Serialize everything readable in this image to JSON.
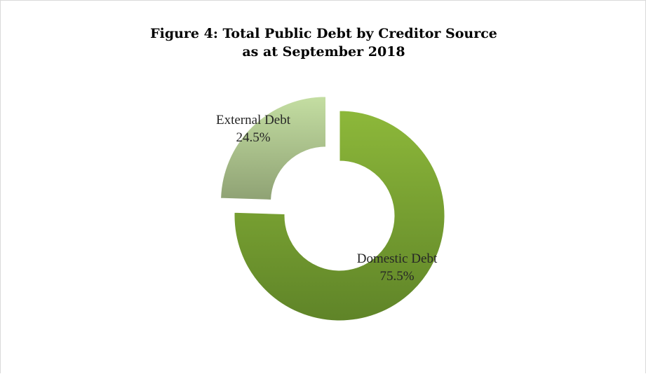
{
  "chart_data": {
    "type": "pie",
    "variant": "donut-exploded",
    "title": "Figure 4: Total Public Debt by Creditor Source",
    "subtitle": "as at September 2018",
    "slices": [
      {
        "name": "Domestic Debt",
        "value": 75.5,
        "label": "75.5%",
        "color": "#6f9a2c"
      },
      {
        "name": "External Debt",
        "value": 24.5,
        "label": "24.5%",
        "color": "#a9c48a"
      }
    ],
    "legend": "none",
    "grid": false
  }
}
